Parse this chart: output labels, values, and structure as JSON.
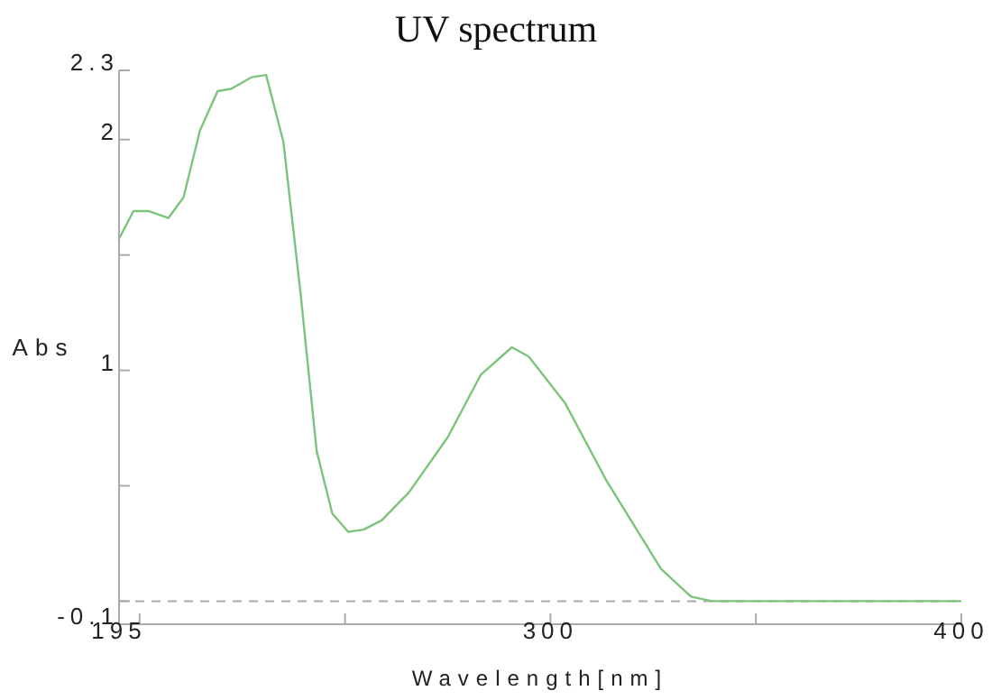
{
  "chart_data": {
    "type": "line",
    "title": "UV spectrum",
    "xlabel": "Wavelength[nm]",
    "ylabel": "Abs",
    "x": [
      195,
      198.5,
      202.3,
      207,
      210.7,
      214.7,
      219,
      222.3,
      227.2,
      230.8,
      235,
      239.2,
      243.1,
      246.9,
      250.8,
      254.5,
      258.9,
      265.5,
      275,
      283,
      290.6,
      294.7,
      303.5,
      313.7,
      326.9,
      334.2,
      339.3,
      400
    ],
    "series": [
      {
        "color": "#7cc47c",
        "values": [
          1.57,
          1.69,
          1.69,
          1.66,
          1.75,
          2.04,
          2.21,
          2.22,
          2.27,
          2.28,
          1.99,
          1.33,
          0.65,
          0.38,
          0.3,
          0.31,
          0.35,
          0.47,
          0.71,
          0.98,
          1.1,
          1.06,
          0.86,
          0.52,
          0.14,
          0.02,
          0,
          0
        ]
      }
    ],
    "xlim": [
      195,
      400
    ],
    "xticks": [
      195,
      {
        "value": 200,
        "label": null
      },
      {
        "value": 250,
        "label": null
      },
      300,
      {
        "value": 350,
        "label": null
      },
      400
    ],
    "ylim": [
      -0.1,
      2.3
    ],
    "yticks": [
      -0.1,
      {
        "value": 0,
        "label": null
      },
      {
        "value": 0.5,
        "label": null
      },
      1,
      {
        "value": 1.5,
        "label": null
      },
      2,
      2.3
    ],
    "ref_lines": [
      {
        "axis": "y",
        "value": 0,
        "color": "#aaaaaa",
        "line_style": "dashed"
      }
    ],
    "grid": false,
    "legend": false,
    "marker": "none",
    "line_style": "solid"
  }
}
